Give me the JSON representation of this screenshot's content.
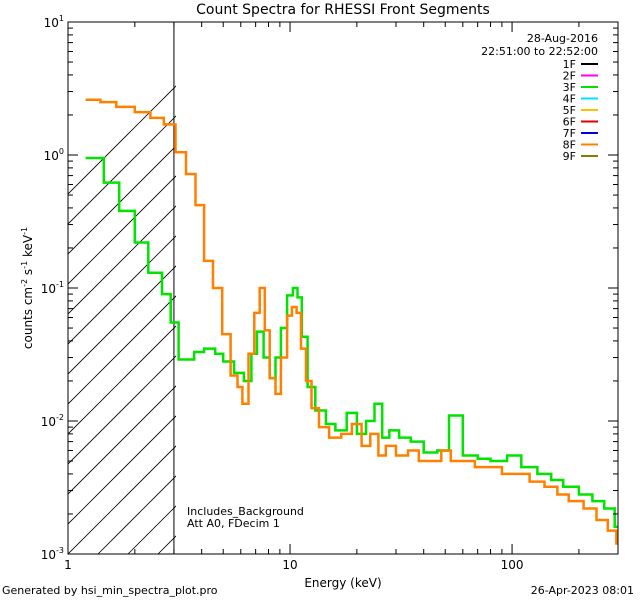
{
  "chart_data": {
    "type": "line",
    "title": "Count Spectra for RHESSI Front Segments",
    "xlabel": "Energy (keV)",
    "ylabel_parts": [
      "counts cm",
      "-2",
      " s",
      "-1",
      " keV",
      "-1"
    ],
    "xscale": "log",
    "yscale": "log",
    "xlim": [
      1,
      300
    ],
    "ylim": [
      0.001,
      10
    ],
    "x_tick_labels": [
      {
        "value": 1,
        "label": "1"
      },
      {
        "value": 10,
        "label": "10"
      },
      {
        "value": 100,
        "label": "100"
      }
    ],
    "y_tick_labels": [
      {
        "value": 10,
        "base": "10",
        "exp": "1"
      },
      {
        "value": 1,
        "base": "10",
        "exp": "0"
      },
      {
        "value": 0.1,
        "base": "10",
        "exp": "-1"
      },
      {
        "value": 0.01,
        "base": "10",
        "exp": "-2"
      },
      {
        "value": 0.001,
        "base": "10",
        "exp": "-3"
      }
    ],
    "date": "28-Aug-2016",
    "time_range": "22:51:00 to 22:52:00",
    "hatched_region": [
      1,
      3
    ],
    "annotations": [
      "Includes_Background",
      "Att A0, FDecim 1"
    ],
    "legend": [
      {
        "label": "1F",
        "color": "#000000"
      },
      {
        "label": "2F",
        "color": "#ff00ff"
      },
      {
        "label": "3F",
        "color": "#00e400"
      },
      {
        "label": "4F",
        "color": "#00e0ff"
      },
      {
        "label": "5F",
        "color": "#ffc000"
      },
      {
        "label": "6F",
        "color": "#e00000"
      },
      {
        "label": "7F",
        "color": "#0000e0"
      },
      {
        "label": "8F",
        "color": "#ff8000"
      },
      {
        "label": "9F",
        "color": "#808000"
      }
    ],
    "series": [
      {
        "name": "3F",
        "color": "#00e400",
        "points": [
          [
            1.2,
            0.95
          ],
          [
            1.45,
            0.62
          ],
          [
            1.7,
            0.38
          ],
          [
            2.0,
            0.22
          ],
          [
            2.3,
            0.13
          ],
          [
            2.65,
            0.09
          ],
          [
            2.9,
            0.055
          ],
          [
            3.15,
            0.029
          ],
          [
            3.7,
            0.033
          ],
          [
            4.1,
            0.035
          ],
          [
            4.6,
            0.032
          ],
          [
            5.0,
            0.028
          ],
          [
            5.6,
            0.023
          ],
          [
            6.2,
            0.02
          ],
          [
            6.7,
            0.032
          ],
          [
            7.1,
            0.047
          ],
          [
            7.6,
            0.03
          ],
          [
            8.1,
            0.021
          ],
          [
            8.6,
            0.03
          ],
          [
            9.1,
            0.05
          ],
          [
            9.7,
            0.088
          ],
          [
            10.3,
            0.1
          ],
          [
            10.8,
            0.085
          ],
          [
            11.3,
            0.043
          ],
          [
            12.0,
            0.018
          ],
          [
            13.0,
            0.012
          ],
          [
            14.5,
            0.0095
          ],
          [
            16.0,
            0.0085
          ],
          [
            18.0,
            0.0115
          ],
          [
            20.0,
            0.008
          ],
          [
            22.0,
            0.01
          ],
          [
            24.0,
            0.0135
          ],
          [
            26.0,
            0.0075
          ],
          [
            28.0,
            0.0085
          ],
          [
            31.0,
            0.0075
          ],
          [
            35.0,
            0.007
          ],
          [
            40.0,
            0.0058
          ],
          [
            46.0,
            0.006
          ],
          [
            52.0,
            0.011
          ],
          [
            60.0,
            0.0055
          ],
          [
            70.0,
            0.0052
          ],
          [
            80.0,
            0.005
          ],
          [
            95.0,
            0.0055
          ],
          [
            110.0,
            0.0045
          ],
          [
            130.0,
            0.004
          ],
          [
            150.0,
            0.0036
          ],
          [
            170.0,
            0.0032
          ],
          [
            200.0,
            0.0028
          ],
          [
            230.0,
            0.0025
          ],
          [
            260.0,
            0.0022
          ],
          [
            290.0,
            0.0016
          ]
        ]
      },
      {
        "name": "8F",
        "color": "#ff8000",
        "points": [
          [
            1.2,
            2.6
          ],
          [
            1.4,
            2.5
          ],
          [
            1.65,
            2.3
          ],
          [
            2.0,
            2.1
          ],
          [
            2.35,
            1.9
          ],
          [
            2.7,
            1.7
          ],
          [
            3.05,
            1.05
          ],
          [
            3.4,
            0.72
          ],
          [
            3.75,
            0.42
          ],
          [
            4.1,
            0.16
          ],
          [
            4.5,
            0.1
          ],
          [
            4.95,
            0.045
          ],
          [
            5.4,
            0.022
          ],
          [
            5.8,
            0.018
          ],
          [
            6.1,
            0.0135
          ],
          [
            6.5,
            0.032
          ],
          [
            6.9,
            0.065
          ],
          [
            7.3,
            0.1
          ],
          [
            7.7,
            0.048
          ],
          [
            8.1,
            0.021
          ],
          [
            8.6,
            0.016
          ],
          [
            9.1,
            0.03
          ],
          [
            9.7,
            0.062
          ],
          [
            10.2,
            0.072
          ],
          [
            10.7,
            0.065
          ],
          [
            11.2,
            0.035
          ],
          [
            11.8,
            0.02
          ],
          [
            12.5,
            0.0125
          ],
          [
            13.5,
            0.009
          ],
          [
            15.0,
            0.0075
          ],
          [
            17.0,
            0.008
          ],
          [
            19.0,
            0.0095
          ],
          [
            21.0,
            0.0065
          ],
          [
            23.0,
            0.008
          ],
          [
            25.0,
            0.0055
          ],
          [
            27.0,
            0.0065
          ],
          [
            30.0,
            0.0055
          ],
          [
            34.0,
            0.006
          ],
          [
            38.0,
            0.005
          ],
          [
            43.0,
            0.005
          ],
          [
            48.0,
            0.006
          ],
          [
            53.0,
            0.005
          ],
          [
            60.0,
            0.005
          ],
          [
            68.0,
            0.0045
          ],
          [
            78.0,
            0.0045
          ],
          [
            90.0,
            0.004
          ],
          [
            105.0,
            0.004
          ],
          [
            120.0,
            0.0035
          ],
          [
            140.0,
            0.0032
          ],
          [
            160.0,
            0.0028
          ],
          [
            180.0,
            0.0025
          ],
          [
            210.0,
            0.0022
          ],
          [
            240.0,
            0.0018
          ],
          [
            270.0,
            0.0015
          ],
          [
            295.0,
            0.0012
          ]
        ]
      }
    ]
  },
  "footer": {
    "left": "Generated by hsi_min_spectra_plot.pro",
    "right": "26-Apr-2023 08:01"
  }
}
